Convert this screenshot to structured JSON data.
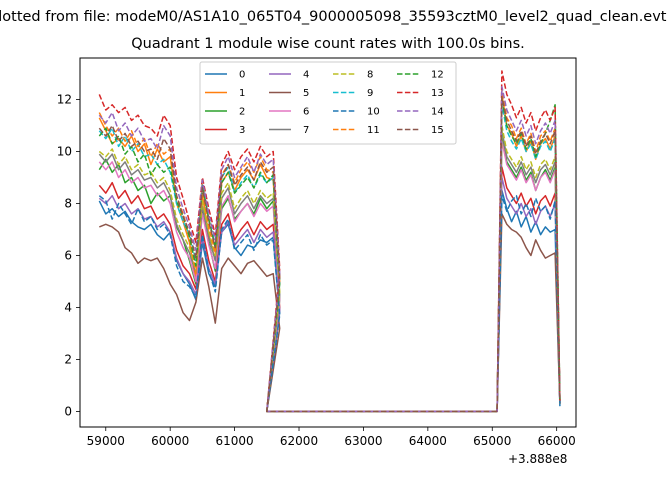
{
  "suptitle": "Plotted from file: modeM0/AS1A10_065T04_9000005098_35593cztM0_level2_quad_clean.evt",
  "chart_data": {
    "type": "line",
    "title": "Quadrant 1 module wise count rates with 100.0s bins.",
    "xlabel": "",
    "ylabel": "",
    "x_offset_label": "+3.888e8",
    "xlim": [
      58600,
      66300
    ],
    "ylim": [
      -0.6,
      13.6
    ],
    "xticks": [
      59000,
      60000,
      61000,
      62000,
      63000,
      64000,
      65000,
      66000
    ],
    "yticks": [
      0,
      2,
      4,
      6,
      8,
      10,
      12
    ],
    "grid": false,
    "legend": {
      "position": "top-center",
      "columns": 4
    },
    "series": [
      {
        "name": "0",
        "color": "#1f77b4",
        "dash": "solid",
        "start": 8.1,
        "y": [
          8.1,
          7.6,
          7.8,
          7.5,
          7.7,
          7.3,
          7.1,
          7.0,
          7.2,
          6.8,
          6.6,
          6.9,
          5.8,
          5.3,
          4.9,
          4.3,
          6.5,
          5.3,
          4.8,
          6.9,
          7.2,
          6.3,
          6.0,
          6.4,
          6.3,
          6.6,
          6.5,
          6.7,
          3.8,
          0,
          0,
          0,
          0,
          8.5,
          7.8,
          7.3,
          7.7,
          7.1,
          7.5,
          6.9,
          7.3,
          6.8,
          7.1,
          6.9,
          7.0,
          0.2
        ]
      },
      {
        "name": "1",
        "color": "#ff7f0e",
        "dash": "solid",
        "start": 11.3,
        "y": [
          11.3,
          10.8,
          10.3,
          10.5,
          10.2,
          10.6,
          10.0,
          10.3,
          9.5,
          10.1,
          9.6,
          9.8,
          8.0,
          7.3,
          6.5,
          5.0,
          8.3,
          6.8,
          5.8,
          8.8,
          9.2,
          8.5,
          9.0,
          9.3,
          8.9,
          9.5,
          9.0,
          8.9,
          5.0,
          0,
          0,
          0,
          0,
          12.2,
          11.0,
          10.7,
          10.2,
          10.6,
          10.0,
          10.4,
          9.7,
          10.3,
          10.5,
          10.1,
          10.6,
          0.4
        ]
      },
      {
        "name": "2",
        "color": "#2ca02c",
        "dash": "solid",
        "start": 9.3,
        "y": [
          9.3,
          9.7,
          9.2,
          9.5,
          8.8,
          9.0,
          8.5,
          8.7,
          8.0,
          8.4,
          8.1,
          8.3,
          7.1,
          6.6,
          5.8,
          4.9,
          7.7,
          6.5,
          5.4,
          7.8,
          8.2,
          7.4,
          7.7,
          8.0,
          7.6,
          8.2,
          7.8,
          8.1,
          4.3,
          0,
          0,
          0,
          0,
          10.7,
          9.6,
          9.3,
          9.0,
          9.4,
          8.9,
          9.2,
          8.5,
          9.0,
          9.3,
          8.9,
          9.4,
          0.3
        ]
      },
      {
        "name": "3",
        "color": "#d62728",
        "dash": "solid",
        "start": 8.7,
        "y": [
          8.7,
          8.4,
          8.8,
          8.2,
          8.5,
          8.0,
          8.3,
          7.8,
          7.9,
          7.4,
          7.6,
          7.2,
          6.2,
          5.6,
          5.3,
          4.7,
          7.0,
          5.8,
          5.0,
          7.2,
          7.6,
          6.6,
          7.0,
          7.3,
          6.8,
          7.3,
          7.0,
          7.2,
          4.0,
          0,
          0,
          0,
          0,
          9.4,
          8.6,
          8.3,
          8.0,
          8.4,
          7.9,
          8.2,
          7.6,
          8.1,
          8.3,
          7.9,
          8.4,
          0.3
        ]
      },
      {
        "name": "4",
        "color": "#9467bd",
        "dash": "solid",
        "start": 8.2,
        "y": [
          8.2,
          8.0,
          8.3,
          7.8,
          8.0,
          7.6,
          7.8,
          7.4,
          7.5,
          7.1,
          7.3,
          6.9,
          5.9,
          5.3,
          5.0,
          4.5,
          6.7,
          5.5,
          4.9,
          6.9,
          7.3,
          6.4,
          6.7,
          7.0,
          6.5,
          7.0,
          6.7,
          6.9,
          3.9,
          0,
          0,
          0,
          0,
          9.0,
          8.2,
          7.9,
          7.6,
          8.0,
          7.5,
          7.8,
          7.2,
          7.7,
          7.9,
          7.5,
          8.0,
          0.3
        ]
      },
      {
        "name": "5",
        "color": "#8c564b",
        "dash": "solid",
        "start": 7.1,
        "y": [
          7.1,
          7.2,
          7.1,
          6.9,
          6.3,
          6.1,
          5.7,
          5.9,
          5.8,
          5.9,
          5.5,
          4.9,
          4.5,
          3.8,
          3.5,
          4.2,
          5.9,
          4.8,
          3.4,
          5.5,
          5.9,
          5.6,
          5.3,
          5.7,
          5.8,
          5.5,
          5.2,
          5.3,
          3.2,
          0,
          0,
          0,
          0,
          7.6,
          7.2,
          7.0,
          6.9,
          6.7,
          6.3,
          6.0,
          6.6,
          6.2,
          5.9,
          6.0,
          6.1,
          0.3
        ]
      },
      {
        "name": "6",
        "color": "#e377c2",
        "dash": "solid",
        "start": 9.6,
        "y": [
          9.6,
          9.3,
          9.6,
          9.0,
          9.3,
          8.8,
          9.0,
          8.6,
          8.7,
          8.3,
          8.5,
          8.0,
          6.9,
          6.3,
          5.9,
          5.0,
          7.6,
          6.4,
          5.5,
          7.9,
          8.3,
          7.3,
          7.7,
          8.0,
          7.5,
          8.0,
          7.7,
          7.9,
          4.3,
          0,
          0,
          0,
          0,
          10.4,
          9.5,
          9.2,
          8.9,
          9.3,
          8.8,
          9.1,
          8.5,
          9.0,
          9.2,
          8.8,
          9.3,
          0.3
        ]
      },
      {
        "name": "7",
        "color": "#7f7f7f",
        "dash": "solid",
        "start": 9.9,
        "y": [
          9.9,
          9.6,
          9.9,
          9.3,
          9.6,
          9.1,
          9.3,
          8.9,
          9.0,
          8.6,
          8.8,
          8.3,
          7.2,
          6.6,
          6.1,
          5.3,
          7.9,
          6.7,
          5.8,
          8.2,
          8.6,
          7.6,
          8.0,
          8.3,
          7.8,
          8.3,
          8.0,
          8.2,
          4.5,
          0,
          0,
          0,
          0,
          10.8,
          9.8,
          9.5,
          9.2,
          9.6,
          9.1,
          9.4,
          8.8,
          9.3,
          9.5,
          9.1,
          9.6,
          0.3
        ]
      },
      {
        "name": "8",
        "color": "#bcbd22",
        "dash": "dashed",
        "start": 10.0,
        "y": [
          10.0,
          9.8,
          10.1,
          9.5,
          9.8,
          9.3,
          9.5,
          9.1,
          9.2,
          8.8,
          9.0,
          8.5,
          7.4,
          6.8,
          6.3,
          5.4,
          8.1,
          6.9,
          6.0,
          8.4,
          8.8,
          7.8,
          8.2,
          8.5,
          8.0,
          8.5,
          8.2,
          8.4,
          4.6,
          0,
          0,
          0,
          0,
          11.0,
          10.0,
          9.7,
          9.4,
          9.8,
          9.3,
          9.6,
          9.0,
          9.5,
          9.7,
          9.3,
          9.8,
          0.3
        ]
      },
      {
        "name": "9",
        "color": "#17becf",
        "dash": "dashed",
        "start": 10.8,
        "y": [
          10.8,
          10.5,
          10.9,
          10.2,
          10.6,
          10.0,
          10.3,
          9.8,
          9.9,
          9.5,
          9.7,
          9.2,
          8.0,
          7.3,
          6.8,
          5.8,
          8.7,
          7.4,
          6.4,
          9.0,
          9.4,
          8.4,
          8.8,
          9.1,
          8.6,
          9.1,
          8.8,
          9.0,
          5.0,
          0,
          0,
          0,
          0,
          11.8,
          10.8,
          10.4,
          10.1,
          10.5,
          10.0,
          10.3,
          9.7,
          10.2,
          10.4,
          10.0,
          10.5,
          0.4
        ]
      },
      {
        "name": "10",
        "color": "#1f77b4",
        "dash": "dashed",
        "start": 8.3,
        "y": [
          8.3,
          8.1,
          7.4,
          8.0,
          7.6,
          7.2,
          7.8,
          7.3,
          7.5,
          7.0,
          7.2,
          6.8,
          5.6,
          5.0,
          4.8,
          4.4,
          6.8,
          5.4,
          4.6,
          7.0,
          7.4,
          6.2,
          6.5,
          6.8,
          6.2,
          6.8,
          6.4,
          6.6,
          3.7,
          0,
          0,
          0,
          0,
          8.3,
          7.7,
          8.1,
          8.3,
          7.6,
          8.0,
          7.5,
          8.2,
          7.7,
          7.9,
          7.4,
          8.1,
          0.3
        ]
      },
      {
        "name": "11",
        "color": "#ff7f0e",
        "dash": "dashed",
        "start": 11.5,
        "y": [
          11.5,
          11.0,
          10.6,
          10.9,
          10.4,
          10.8,
          10.2,
          10.5,
          9.8,
          10.3,
          9.9,
          10.1,
          8.3,
          7.6,
          6.8,
          5.3,
          8.6,
          7.1,
          6.1,
          9.1,
          9.5,
          8.8,
          9.3,
          9.6,
          9.2,
          9.8,
          9.3,
          9.2,
          5.2,
          0,
          0,
          0,
          0,
          12.4,
          11.3,
          11.0,
          10.5,
          10.9,
          10.3,
          10.7,
          10.0,
          10.6,
          10.8,
          10.4,
          10.9,
          0.4
        ]
      },
      {
        "name": "12",
        "color": "#2ca02c",
        "dash": "dashed",
        "start": 10.6,
        "y": [
          10.6,
          10.9,
          10.3,
          10.6,
          9.9,
          10.2,
          9.6,
          9.9,
          9.1,
          9.5,
          9.2,
          9.4,
          8.1,
          7.5,
          6.7,
          5.6,
          8.7,
          7.4,
          6.3,
          8.8,
          9.2,
          8.4,
          8.7,
          9.0,
          8.6,
          9.2,
          8.8,
          9.1,
          4.9,
          0,
          0,
          0,
          0,
          12.0,
          11.0,
          10.6,
          10.3,
          10.7,
          10.1,
          10.5,
          9.8,
          10.3,
          10.7,
          11.2,
          11.8,
          0.4
        ]
      },
      {
        "name": "13",
        "color": "#d62728",
        "dash": "dashed",
        "start": 12.2,
        "y": [
          12.2,
          11.6,
          11.8,
          11.5,
          11.7,
          11.2,
          11.4,
          11.0,
          10.9,
          10.6,
          11.4,
          11.0,
          9.0,
          8.2,
          7.3,
          6.5,
          9.0,
          7.8,
          6.8,
          9.5,
          10.0,
          9.3,
          9.8,
          10.1,
          9.6,
          10.2,
          9.8,
          10.0,
          5.5,
          0,
          0,
          0,
          0,
          13.1,
          12.2,
          11.8,
          11.3,
          11.7,
          11.1,
          11.5,
          10.8,
          11.3,
          11.6,
          11.2,
          11.7,
          0.4
        ]
      },
      {
        "name": "14",
        "color": "#9467bd",
        "dash": "dashed",
        "start": 11.4,
        "y": [
          11.4,
          11.1,
          11.5,
          10.8,
          11.1,
          10.6,
          10.9,
          10.4,
          10.5,
          10.1,
          11.0,
          10.6,
          8.6,
          7.8,
          7.1,
          6.2,
          8.9,
          7.6,
          6.6,
          9.3,
          9.8,
          9.0,
          9.4,
          9.8,
          9.2,
          9.9,
          9.5,
          9.7,
          5.3,
          0,
          0,
          0,
          0,
          12.5,
          11.6,
          11.2,
          10.8,
          11.2,
          10.6,
          11.0,
          10.3,
          10.8,
          11.1,
          10.7,
          11.2,
          0.4
        ]
      },
      {
        "name": "15",
        "color": "#8c564b",
        "dash": "dashed",
        "start": 10.9,
        "y": [
          10.9,
          10.6,
          11.0,
          10.4,
          10.7,
          10.2,
          10.4,
          10.0,
          10.1,
          9.7,
          10.5,
          10.1,
          8.3,
          7.5,
          6.9,
          5.9,
          8.6,
          7.3,
          6.3,
          9.0,
          9.5,
          8.7,
          9.1,
          9.4,
          8.9,
          9.6,
          9.2,
          9.4,
          5.1,
          0,
          0,
          0,
          0,
          12.1,
          11.2,
          10.8,
          10.4,
          10.8,
          10.2,
          10.6,
          9.9,
          10.4,
          10.7,
          10.3,
          10.8,
          0.4
        ]
      }
    ]
  }
}
